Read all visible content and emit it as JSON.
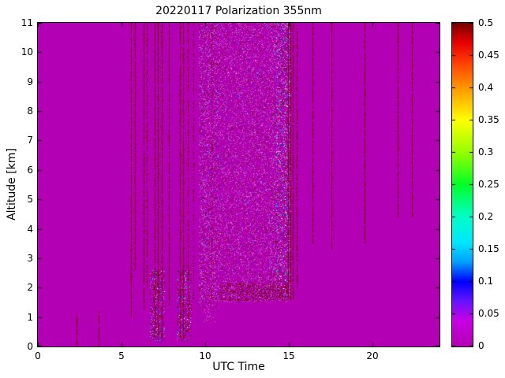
{
  "chart_data": {
    "type": "heatmap",
    "title": "20220117 Polarization 355nm",
    "xlabel": "UTC Time",
    "ylabel": "Altitude [km]",
    "xlim": [
      0,
      24
    ],
    "ylim": [
      0,
      11
    ],
    "grid": false,
    "x_ticks": {
      "values": [
        0,
        5,
        10,
        15,
        20
      ],
      "labels": [
        "0",
        "5",
        "10",
        "15",
        "20"
      ]
    },
    "y_ticks": {
      "values": [
        0,
        1,
        2,
        3,
        4,
        5,
        6,
        7,
        8,
        9,
        10,
        11
      ],
      "labels": [
        "0",
        "1",
        "2",
        "3",
        "4",
        "5",
        "6",
        "7",
        "8",
        "9",
        "10",
        "11"
      ]
    },
    "colorbar": {
      "min": 0,
      "max": 0.5,
      "position": "right",
      "tick_values": [
        0,
        0.05,
        0.1,
        0.15,
        0.2,
        0.25,
        0.3,
        0.35,
        0.4,
        0.45,
        0.5
      ],
      "tick_labels": [
        "0",
        "0.05",
        "0.1",
        "0.15",
        "0.2",
        "0.25",
        "0.3",
        "0.35",
        "0.4",
        "0.45",
        "0.5"
      ]
    },
    "colormap_stops": [
      [
        0.0,
        "#b400b4"
      ],
      [
        0.04,
        "#c800e6"
      ],
      [
        0.07,
        "#6414ff"
      ],
      [
        0.1,
        "#0000ff"
      ],
      [
        0.13,
        "#00a0ff"
      ],
      [
        0.16,
        "#00e6ff"
      ],
      [
        0.2,
        "#00ffc8"
      ],
      [
        0.25,
        "#00ff28"
      ],
      [
        0.3,
        "#96ff00"
      ],
      [
        0.35,
        "#ffff00"
      ],
      [
        0.4,
        "#ff9600"
      ],
      [
        0.44,
        "#ff3c00"
      ],
      [
        0.47,
        "#e60000"
      ],
      [
        0.5,
        "#780000"
      ]
    ],
    "background_value": 0,
    "background_color": "#b400b4",
    "streak_color": "#700000",
    "palettes": {
      "pink": [
        [
          "#c23ac2",
          26
        ],
        [
          "#d15cd1",
          16
        ],
        [
          "#9c009c",
          18
        ],
        [
          "#8a008a",
          10
        ],
        [
          "#e07ce0",
          7
        ],
        [
          "#700000",
          14
        ],
        [
          "#b400b4",
          5
        ],
        [
          "#3c28ff",
          2
        ],
        [
          "#00c8ff",
          2
        ]
      ],
      "dark": [
        [
          "#700000",
          60
        ],
        [
          "#8c0000",
          16
        ],
        [
          "#5a0000",
          12
        ],
        [
          "#9c009c",
          12
        ]
      ],
      "lowmix": [
        [
          "#700000",
          38
        ],
        [
          "#3c28ff",
          14
        ],
        [
          "#00c8ff",
          7
        ],
        [
          "#c23ac2",
          18
        ],
        [
          "#e07ce0",
          9
        ],
        [
          "#ffffff",
          3
        ],
        [
          "#9c009c",
          11
        ]
      ],
      "colorful": [
        [
          "#700000",
          22
        ],
        [
          "#3c28ff",
          18
        ],
        [
          "#00c8ff",
          13
        ],
        [
          "#00e632",
          7
        ],
        [
          "#ffffff",
          7
        ],
        [
          "#ff9cff",
          14
        ],
        [
          "#c23ac2",
          19
        ]
      ]
    },
    "noise_regions": [
      {
        "t0": 9.6,
        "t1": 15.15,
        "a0": 1.5,
        "a1": 11,
        "density": 0.28,
        "palette": "pink"
      },
      {
        "t0": 9.6,
        "t1": 10.8,
        "a0": 1.2,
        "a1": 11,
        "density": 0.1,
        "palette": "pink"
      },
      {
        "t0": 13.8,
        "t1": 15.15,
        "a0": 1.6,
        "a1": 11,
        "density": 0.14,
        "palette": "pink"
      },
      {
        "t0": 14.25,
        "t1": 15.1,
        "a0": 1.6,
        "a1": 11,
        "density": 0.13,
        "palette": "colorful"
      },
      {
        "t0": 10.9,
        "t1": 14.95,
        "a0": 1.55,
        "a1": 2.15,
        "density": 0.22,
        "palette": "dark"
      },
      {
        "t0": 6.7,
        "t1": 7.6,
        "a0": 0.2,
        "a1": 2.6,
        "density": 0.3,
        "palette": "lowmix"
      },
      {
        "t0": 8.3,
        "t1": 9.2,
        "a0": 0.2,
        "a1": 2.6,
        "density": 0.3,
        "palette": "lowmix"
      },
      {
        "t0": 9.8,
        "t1": 10.6,
        "a0": 0.8,
        "a1": 1.5,
        "density": 0.15,
        "palette": "pink"
      }
    ],
    "streaks": [
      {
        "t": 2.3,
        "y0": 0.0,
        "y1": 1.05
      },
      {
        "t": 3.62,
        "y0": 0.0,
        "y1": 1.2
      },
      {
        "t": 5.55,
        "y0": 1.0,
        "y1": 11
      },
      {
        "t": 5.78,
        "y0": 2.6,
        "y1": 11
      },
      {
        "t": 6.3,
        "y0": 1.2,
        "y1": 11
      },
      {
        "t": 6.52,
        "y0": 2.0,
        "y1": 11,
        "d": 0.6
      },
      {
        "t": 7.0,
        "y0": 0.3,
        "y1": 11
      },
      {
        "t": 7.18,
        "y0": 0.3,
        "y1": 11
      },
      {
        "t": 7.38,
        "y0": 0.3,
        "y1": 11
      },
      {
        "t": 7.82,
        "y0": 1.4,
        "y1": 11
      },
      {
        "t": 8.5,
        "y0": 0.3,
        "y1": 11
      },
      {
        "t": 8.68,
        "y0": 0.3,
        "y1": 11
      },
      {
        "t": 8.95,
        "y0": 0.5,
        "y1": 11,
        "d": 0.6
      },
      {
        "t": 9.3,
        "y0": 1.5,
        "y1": 11,
        "d": 0.4
      },
      {
        "t": 10.35,
        "y0": 1.5,
        "y1": 11,
        "d": 0.35
      },
      {
        "t": 14.95,
        "y0": 1.6,
        "y1": 11
      },
      {
        "t": 15.08,
        "y0": 1.6,
        "y1": 11
      },
      {
        "t": 15.22,
        "y0": 1.6,
        "y1": 11
      },
      {
        "t": 15.45,
        "y0": 2.0,
        "y1": 11,
        "d": 0.7
      },
      {
        "t": 16.42,
        "y0": 3.5,
        "y1": 11
      },
      {
        "t": 17.52,
        "y0": 3.3,
        "y1": 11
      },
      {
        "t": 19.5,
        "y0": 3.5,
        "y1": 11
      },
      {
        "t": 21.5,
        "y0": 4.4,
        "y1": 11
      },
      {
        "t": 22.35,
        "y0": 4.4,
        "y1": 11
      }
    ]
  }
}
